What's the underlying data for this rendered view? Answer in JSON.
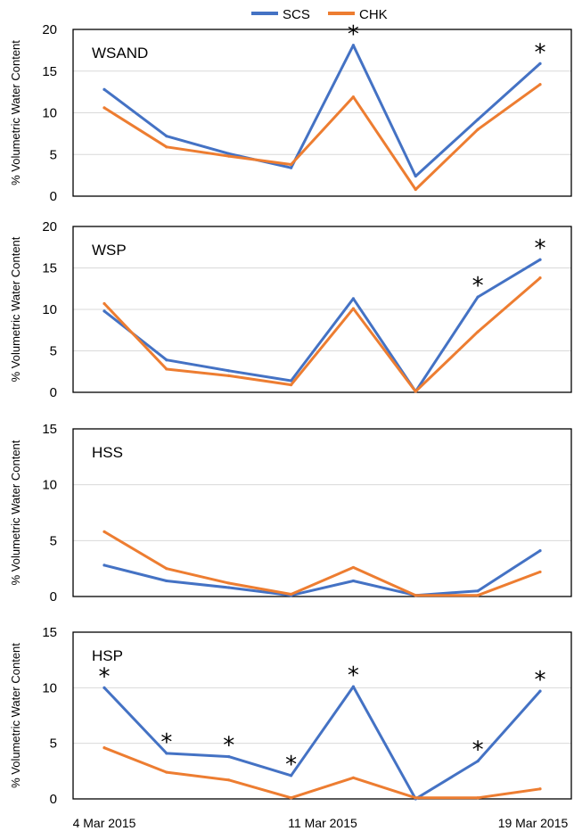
{
  "chart_data": {
    "type": "line",
    "legend": {
      "position": "top-center",
      "entries": [
        "SCS",
        "CHK"
      ]
    },
    "colors": {
      "SCS": "#4472C4",
      "CHK": "#ED7D31"
    },
    "x_tick_labels": [
      "4 Mar 2015",
      "11 Mar 2015",
      "19 Mar 2015"
    ],
    "panels": [
      {
        "label": "WSAND",
        "ylabel": "% Volumetric Water Content",
        "ylim": [
          0,
          20
        ],
        "yticks": [
          0,
          5,
          10,
          15,
          20
        ],
        "grid": true,
        "series": [
          {
            "name": "SCS",
            "values": [
              12.8,
              7.2,
              5.1,
              3.4,
              18.1,
              2.4,
              9.2,
              15.9
            ]
          },
          {
            "name": "CHK",
            "values": [
              10.6,
              5.9,
              4.8,
              3.8,
              11.9,
              0.8,
              8.0,
              13.4
            ]
          }
        ],
        "asterisks": [
          4,
          7
        ]
      },
      {
        "label": "WSP",
        "ylabel": "% Volumetric Water Content",
        "ylim": [
          0,
          20
        ],
        "yticks": [
          0,
          5,
          10,
          15,
          20
        ],
        "grid": true,
        "series": [
          {
            "name": "SCS",
            "values": [
              9.8,
              3.9,
              2.6,
              1.4,
              11.3,
              0.1,
              11.5,
              16.0
            ]
          },
          {
            "name": "CHK",
            "values": [
              10.7,
              2.8,
              2.0,
              0.9,
              10.1,
              0.1,
              7.3,
              13.8
            ]
          }
        ],
        "asterisks": [
          6,
          7
        ]
      },
      {
        "label": "HSS",
        "ylabel": "% Volumetric Water Content",
        "ylim": [
          0,
          15
        ],
        "yticks": [
          0,
          5,
          10,
          15
        ],
        "grid": true,
        "series": [
          {
            "name": "SCS",
            "values": [
              2.8,
              1.4,
              0.8,
              0.1,
              1.4,
              0.1,
              0.5,
              4.1
            ]
          },
          {
            "name": "CHK",
            "values": [
              5.8,
              2.5,
              1.2,
              0.2,
              2.6,
              0.1,
              0.1,
              2.2
            ]
          }
        ],
        "asterisks": []
      },
      {
        "label": "HSP",
        "ylabel": "% Volumetric Water Content",
        "ylim": [
          0,
          15
        ],
        "yticks": [
          0,
          5,
          10,
          15
        ],
        "grid": true,
        "series": [
          {
            "name": "SCS",
            "values": [
              10.0,
              4.1,
              3.8,
              2.1,
              10.1,
              0.0,
              3.4,
              9.7
            ]
          },
          {
            "name": "CHK",
            "values": [
              4.6,
              2.4,
              1.7,
              0.1,
              1.9,
              0.1,
              0.1,
              0.9
            ]
          }
        ],
        "asterisks": [
          0,
          1,
          2,
          3,
          4,
          6,
          7
        ]
      }
    ]
  }
}
